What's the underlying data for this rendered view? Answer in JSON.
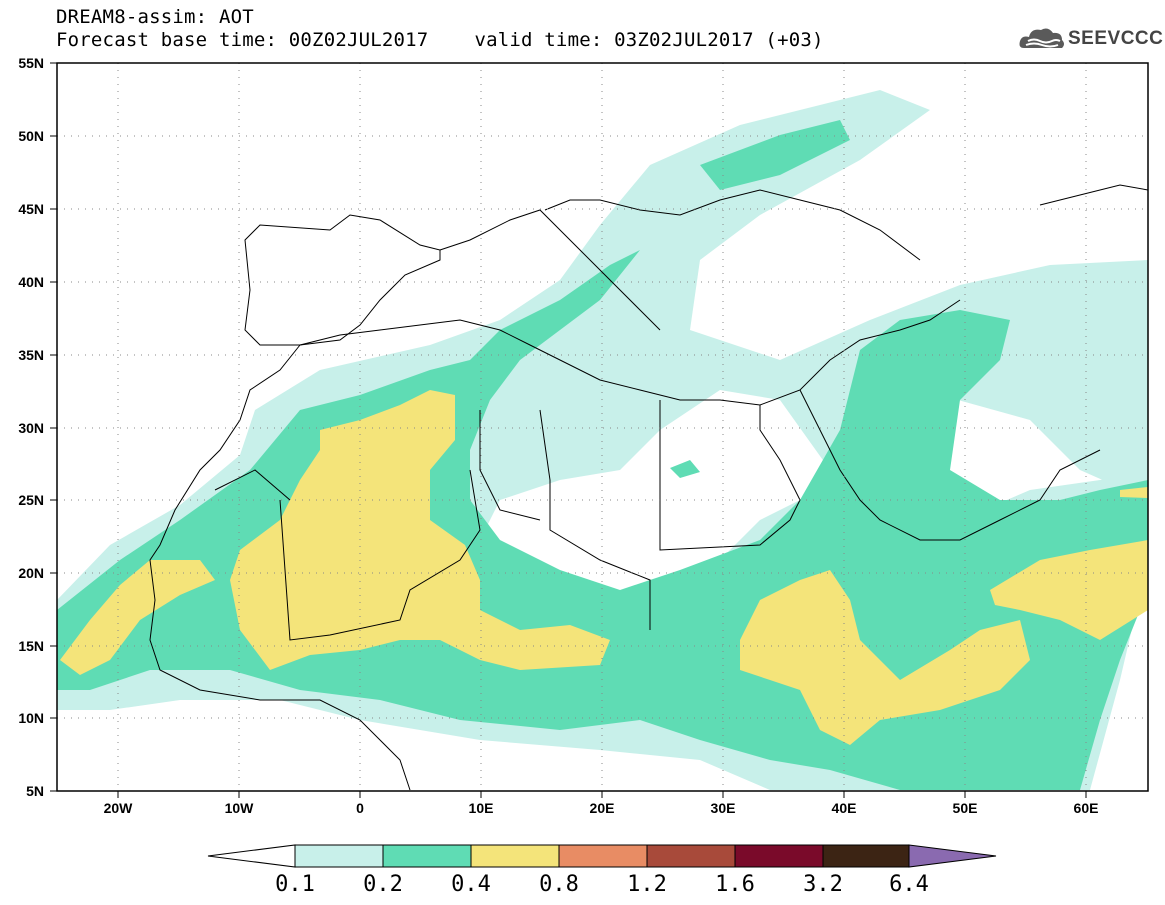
{
  "header": {
    "line1": "DREAM8-assim: AOT",
    "forecast_base": "Forecast base time: 00Z02JUL2017",
    "valid_time": "valid time: 03Z02JUL2017 (+03)"
  },
  "logo": {
    "text": "SEEVCCC",
    "icon": "cloud-icon"
  },
  "map": {
    "projection": "lat-lon",
    "lon_range": [
      -25,
      65
    ],
    "lat_range": [
      5,
      55
    ],
    "lon_labels": [
      "20W",
      "10W",
      "0",
      "10E",
      "20E",
      "30E",
      "40E",
      "50E",
      "60E"
    ],
    "lat_labels": [
      "55N",
      "50N",
      "45N",
      "40N",
      "35N",
      "30N",
      "25N",
      "20N",
      "15N",
      "10N",
      "5N"
    ],
    "grid": "dotted"
  },
  "colorbar": {
    "labels": [
      "0.1",
      "0.2",
      "0.4",
      "0.8",
      "1.2",
      "1.6",
      "3.2",
      "6.4"
    ],
    "colors": [
      "#ffffff",
      "#c8f0ea",
      "#5fdcb4",
      "#f4e47a",
      "#e88c64",
      "#a84a3a",
      "#7a0a2a",
      "#3c2414",
      "#8a6ab0"
    ]
  }
}
